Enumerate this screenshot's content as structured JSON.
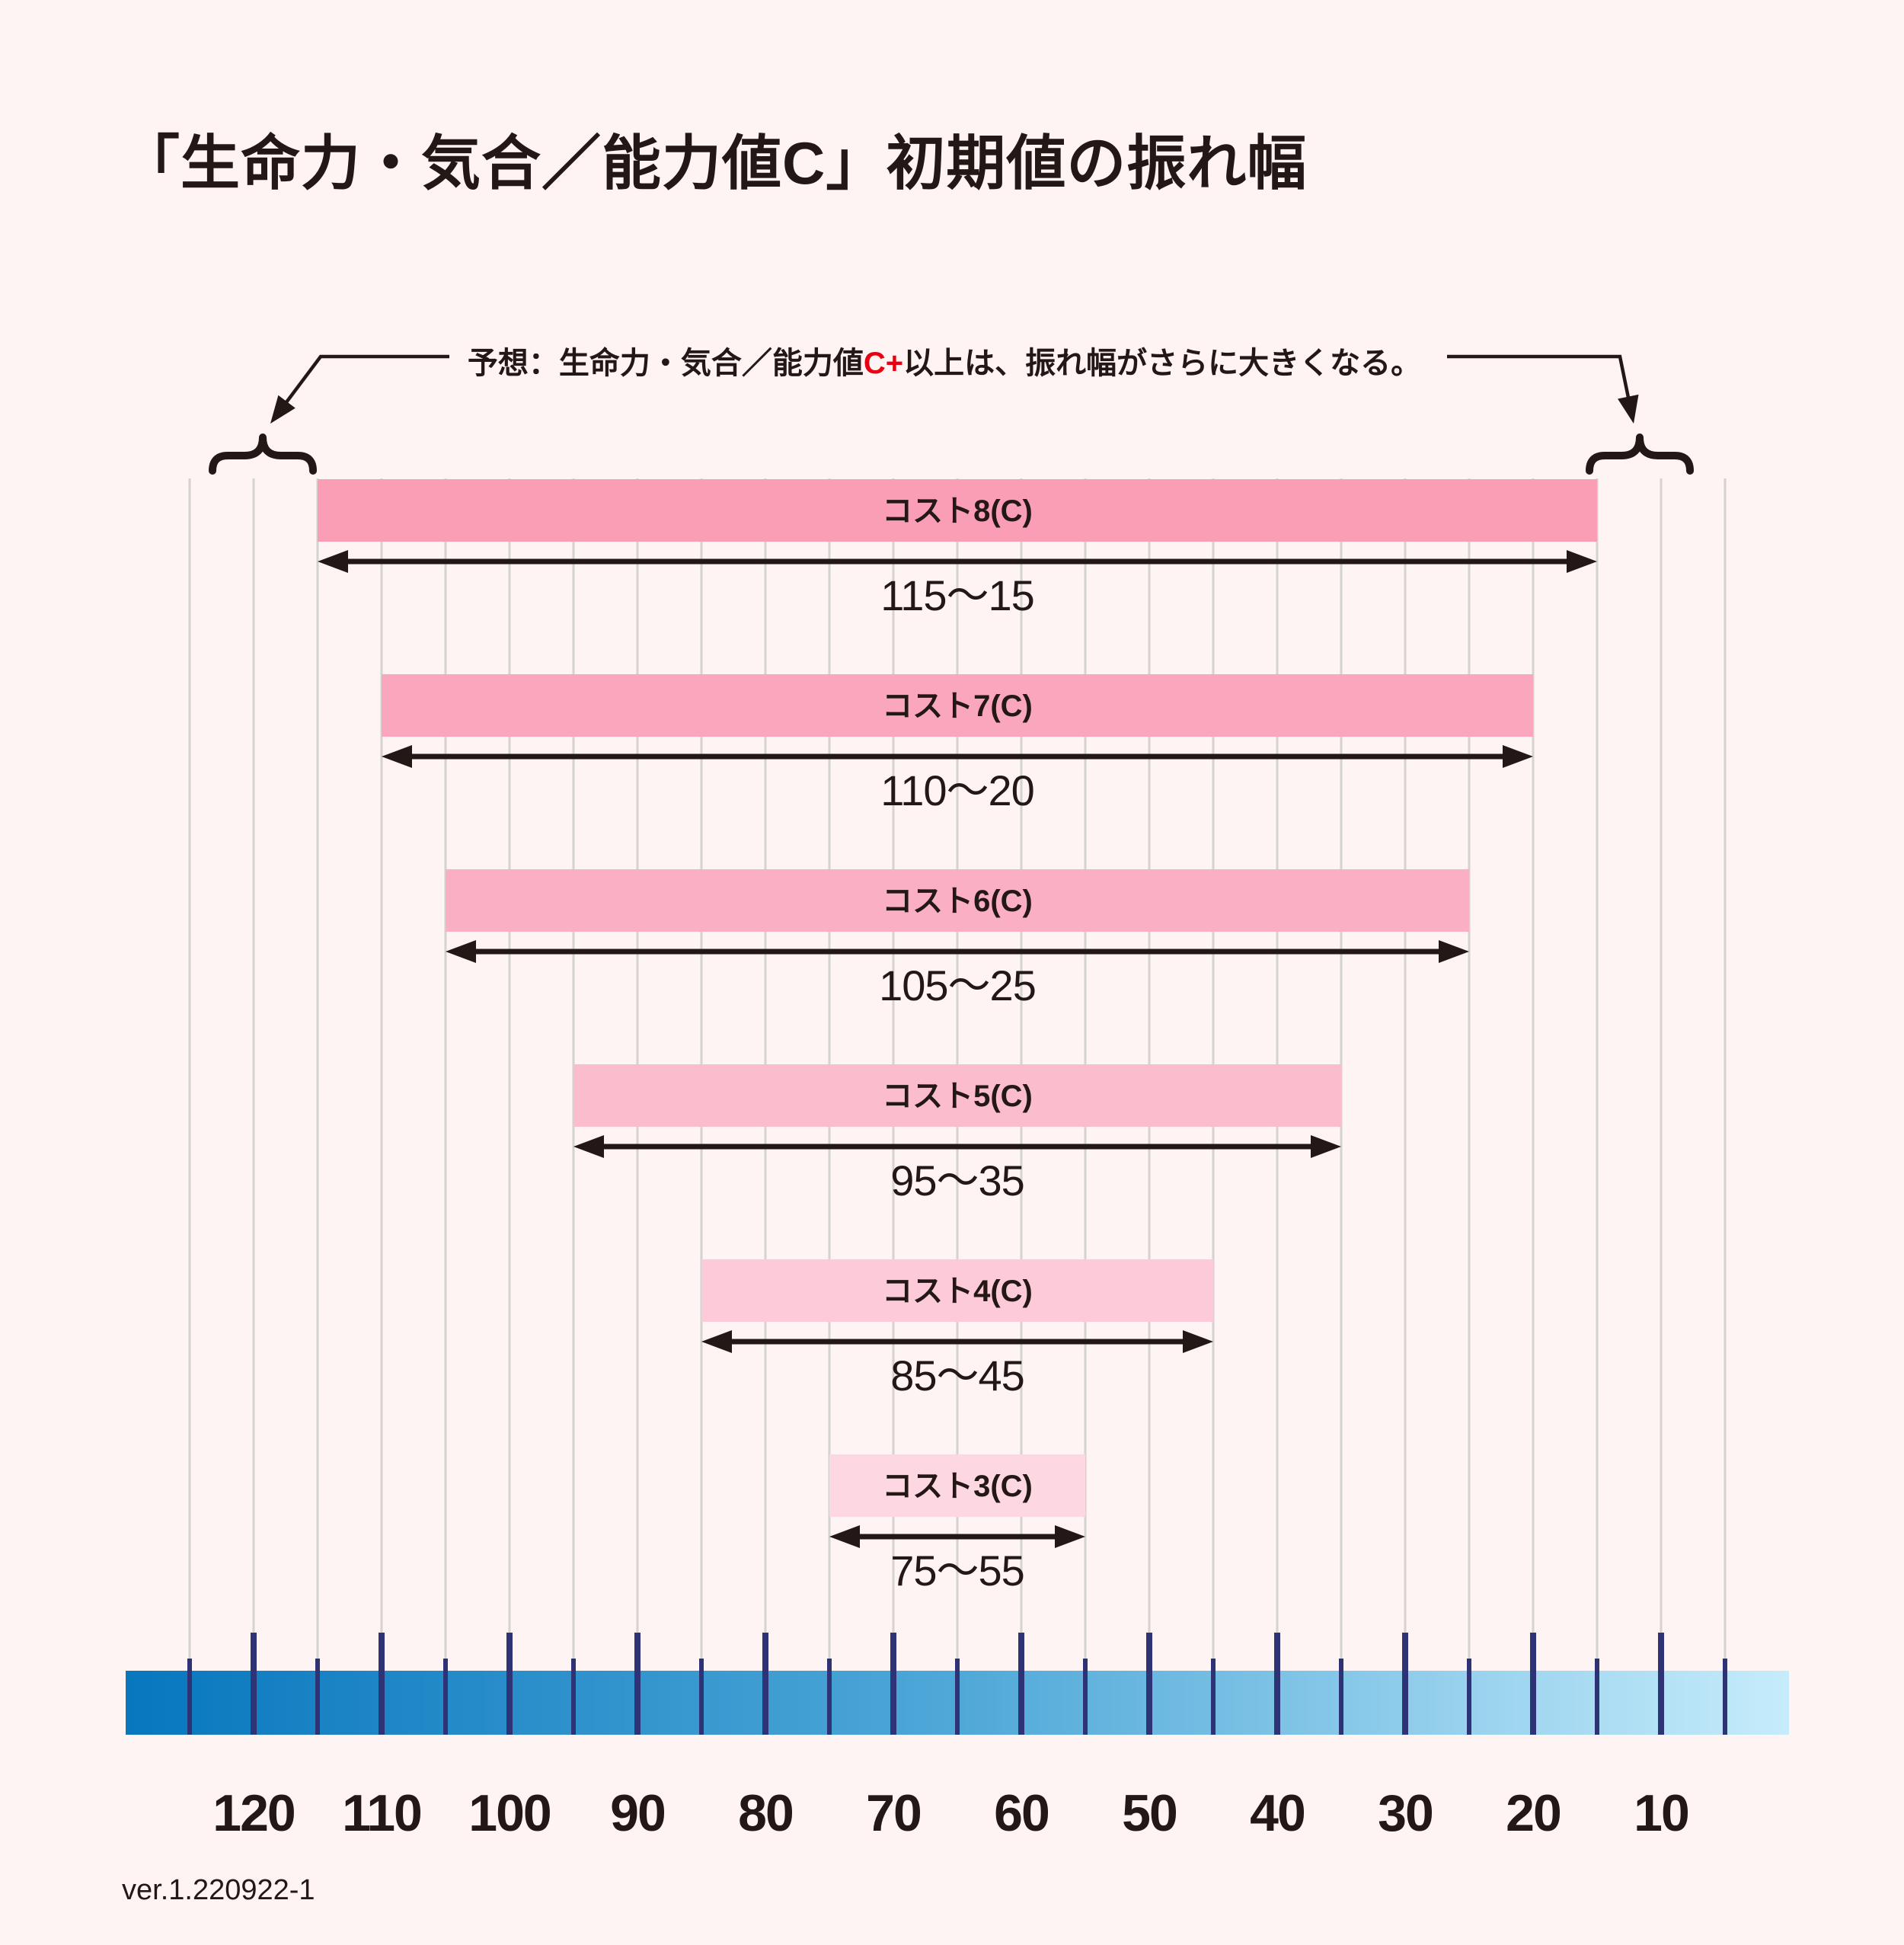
{
  "page": {
    "background": "#FDF4F3",
    "text_color": "#231815",
    "version_label": "ver.1.220922-1"
  },
  "title": "「生命力・気合／能力値C」初期値の振れ幅",
  "annotation": {
    "prefix": "予想：生命力・気合／能力値",
    "highlight": "C+",
    "suffix": "以上は、振れ幅がさらに大きくなる。",
    "highlight_color": "#E60012"
  },
  "chart_data": {
    "type": "bar",
    "subtype": "horizontal-range-bars",
    "title": "「生命力・気合／能力値C」初期値の振れ幅",
    "x_axis": {
      "direction": "values decrease from left (120) to right (10)",
      "major_ticks": [
        120,
        110,
        100,
        90,
        80,
        70,
        60,
        50,
        40,
        30,
        20,
        10
      ],
      "minor_ticks": [
        125,
        115,
        105,
        95,
        85,
        75,
        65,
        55,
        45,
        35,
        25,
        15,
        5
      ],
      "gridlines": [
        125,
        120,
        115,
        110,
        105,
        100,
        95,
        90,
        85,
        80,
        75,
        70,
        65,
        60,
        55,
        50,
        45,
        40,
        35,
        30,
        25,
        20,
        15,
        10,
        5
      ],
      "axis_bar_span": [
        130,
        0
      ],
      "gradient": [
        "#0877BE",
        "#4FA8D8",
        "#C6ECFB"
      ],
      "tick_color": "#2E3376",
      "gridline_color": "#D5D2D2",
      "label_color": "#231815"
    },
    "bars": [
      {
        "label": "コスト8(C)",
        "max": 115,
        "min": 15,
        "range_label": "115〜15",
        "color": "#FA9EB6"
      },
      {
        "label": "コスト7(C)",
        "max": 110,
        "min": 20,
        "range_label": "110〜20",
        "color": "#FAA6BD"
      },
      {
        "label": "コスト6(C)",
        "max": 105,
        "min": 25,
        "range_label": "105〜25",
        "color": "#FAAFC4"
      },
      {
        "label": "コスト5(C)",
        "max": 95,
        "min": 35,
        "range_label": "95〜35",
        "color": "#FBBCCE"
      },
      {
        "label": "コスト4(C)",
        "max": 85,
        "min": 45,
        "range_label": "85〜45",
        "color": "#FCCAD8"
      },
      {
        "label": "コスト3(C)",
        "max": 75,
        "min": 55,
        "range_label": "75〜55",
        "color": "#FDD8E2"
      }
    ],
    "arrow_color": "#231815"
  }
}
